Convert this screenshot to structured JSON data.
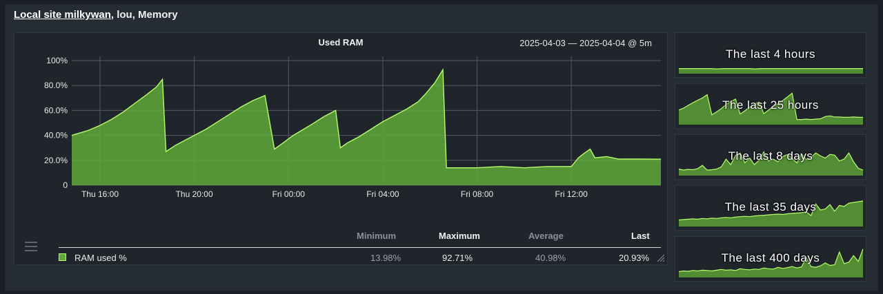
{
  "title": {
    "link": "Local site milkywan",
    "rest": ", lou, Memory"
  },
  "main": {
    "title": "Used RAM",
    "range": "2025-04-03 — 2025-04-04 @ 5m",
    "legend": {
      "headers": {
        "min": "Minimum",
        "max": "Maximum",
        "avg": "Average",
        "last": "Last"
      },
      "series": "RAM used %",
      "min": "13.98%",
      "max": "92.71%",
      "avg": "40.98%",
      "last": "20.93%"
    }
  },
  "colors": {
    "line": "#b6ff6a",
    "fill": "#5fa83a",
    "grid": "#555b62",
    "background": "#20252b"
  },
  "chart_data": {
    "type": "area",
    "title": "Used RAM",
    "yticks": [
      "100%",
      "80.0%",
      "60.0%",
      "40.0%",
      "20.0%",
      "0"
    ],
    "ylim": [
      0,
      100
    ],
    "xticks": [
      "Thu 16:00",
      "Thu 20:00",
      "Fri 00:00",
      "Fri 04:00",
      "Fri 08:00",
      "Fri 12:00"
    ],
    "xlim_hours": [
      14.8,
      39.8
    ],
    "grid": true,
    "series": [
      {
        "name": "RAM used %",
        "x_hours": [
          14.8,
          15.5,
          16.0,
          16.5,
          17.0,
          17.5,
          18.0,
          18.4,
          18.65,
          18.8,
          19.2,
          19.7,
          20.5,
          21.0,
          21.5,
          22.0,
          22.5,
          23.0,
          23.4,
          23.7,
          24.2,
          25.0,
          25.5,
          26.0,
          26.2,
          26.5,
          27.0,
          27.5,
          28.0,
          28.5,
          29.0,
          29.5,
          29.8,
          30.2,
          30.55,
          30.7,
          32.0,
          33.0,
          34.0,
          35.0,
          36.0,
          36.3,
          36.5,
          36.8,
          37.0,
          37.5,
          38.0,
          39.0,
          39.8
        ],
        "values": [
          40,
          44,
          48,
          53,
          59,
          66,
          73,
          79,
          85,
          27,
          32,
          37,
          45,
          51,
          57,
          63,
          68,
          72,
          29,
          33,
          40,
          49,
          55,
          60,
          30,
          34,
          39,
          45,
          51,
          56,
          61,
          67,
          73,
          82,
          92.7,
          14,
          14,
          15,
          14,
          15,
          15,
          22,
          25,
          29,
          22,
          23,
          21,
          21,
          20.9
        ]
      }
    ]
  },
  "minis": [
    {
      "label": "The last 4 hours",
      "values": [
        14,
        14,
        14,
        14,
        14,
        14,
        13,
        14,
        14,
        14,
        14,
        14,
        13,
        14,
        14,
        14,
        14,
        14,
        14,
        14,
        14,
        14,
        14,
        14,
        14,
        14,
        14,
        14,
        14,
        14
      ]
    },
    {
      "label": "The last 25 hours",
      "values": [
        40,
        45,
        53,
        60,
        67,
        73,
        82,
        27,
        35,
        44,
        55,
        63,
        70,
        29,
        38,
        48,
        56,
        62,
        30,
        40,
        50,
        58,
        66,
        76,
        86,
        14,
        14,
        15,
        14,
        15,
        16,
        22,
        24,
        21,
        21,
        20,
        20,
        21,
        20,
        20
      ]
    },
    {
      "label": "The last 8 days",
      "values": [
        18,
        15,
        17,
        16,
        19,
        28,
        15,
        16,
        18,
        24,
        45,
        30,
        55,
        62,
        35,
        48,
        30,
        42,
        65,
        40,
        45,
        38,
        52,
        58,
        47,
        35,
        60,
        44,
        50,
        62,
        54,
        48,
        58,
        56,
        40,
        45,
        62,
        38,
        20,
        15
      ]
    },
    {
      "label": "The last 35 days",
      "values": [
        18,
        19,
        20,
        21,
        20,
        22,
        21,
        23,
        22,
        24,
        25,
        24,
        26,
        27,
        28,
        27,
        29,
        30,
        31,
        32,
        33,
        34,
        33,
        35,
        36,
        37,
        38,
        40,
        30,
        62,
        45,
        48,
        60,
        42,
        58,
        55,
        64,
        66,
        68,
        70
      ]
    },
    {
      "label": "The last 400 days",
      "values": [
        16,
        18,
        17,
        19,
        18,
        20,
        19,
        18,
        20,
        22,
        20,
        21,
        19,
        24,
        22,
        21,
        23,
        22,
        26,
        24,
        23,
        28,
        25,
        27,
        30,
        26,
        29,
        55,
        30,
        28,
        32,
        40,
        33,
        35,
        70,
        38,
        42,
        60,
        44,
        78
      ]
    }
  ]
}
